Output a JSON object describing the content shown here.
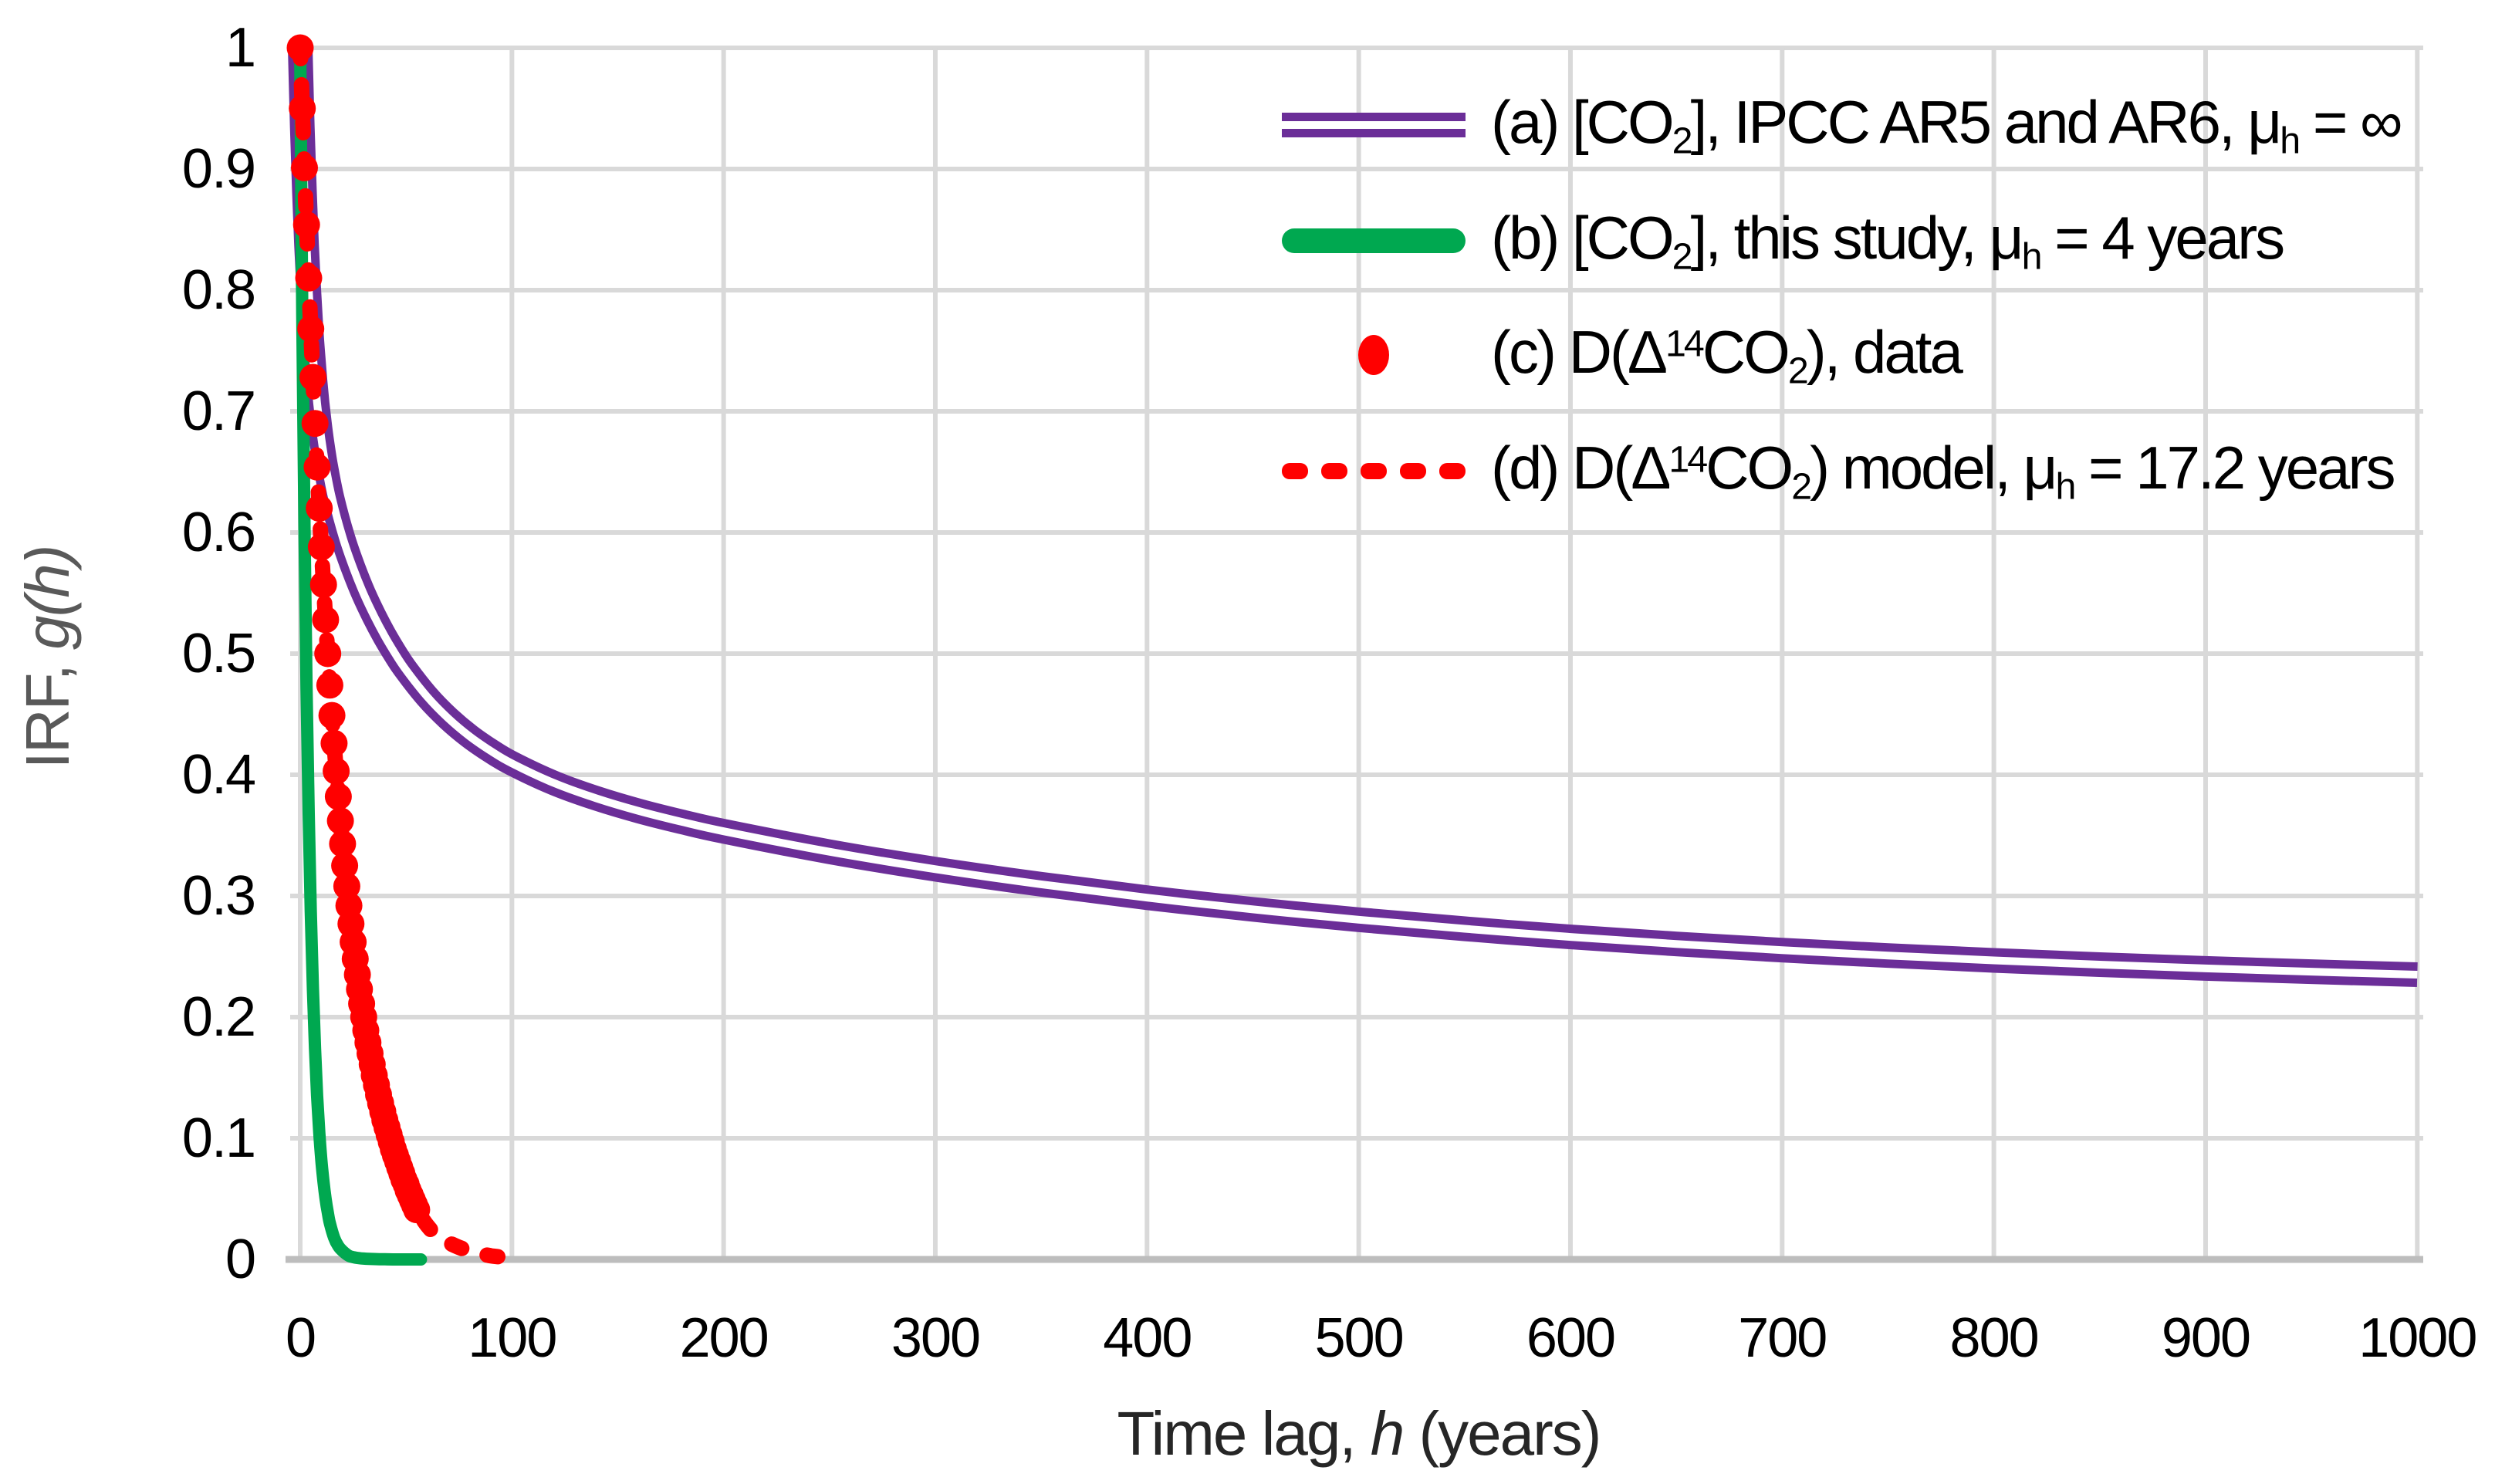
{
  "figure": {
    "background": "#FFFFFF"
  },
  "colors": {
    "ipcc_purple": "#6B2E98",
    "study_green": "#00A850",
    "data_red": "#FF0000",
    "gridline": "#D9D9D9",
    "axis_line": "#BDBDBD",
    "y_title_gray": "#595959",
    "tick_black": "#000000"
  },
  "axes": {
    "x": {
      "title_plain": "Time lag, h (years)",
      "title_segments": [
        {
          "t": "Time lag, "
        },
        {
          "t": "h",
          "style": "italic"
        },
        {
          "t": " (years)"
        }
      ],
      "min": 0,
      "max": 1000,
      "tick_step": 100,
      "tick_values": [
        0,
        100,
        200,
        300,
        400,
        500,
        600,
        700,
        800,
        900,
        1000
      ],
      "tick_labels": [
        "0",
        "100",
        "200",
        "300",
        "400",
        "500",
        "600",
        "700",
        "800",
        "900",
        "1000"
      ]
    },
    "y": {
      "title_plain": "IRF, g(h)",
      "title_segments": [
        {
          "t": "IRF, "
        },
        {
          "t": "g",
          "style": "italic"
        },
        {
          "t": "(",
          "style": "italic"
        },
        {
          "t": "h",
          "style": "italic"
        },
        {
          "t": ")",
          "style": "italic"
        }
      ],
      "min": 0,
      "max": 1,
      "tick_step": 0.1,
      "tick_values": [
        1,
        0.9,
        0.8,
        0.7,
        0.6,
        0.5,
        0.4,
        0.3,
        0.2,
        0.1,
        0
      ],
      "tick_labels": [
        "1",
        "0.9",
        "0.8",
        "0.7",
        "0.6",
        "0.5",
        "0.4",
        "0.3",
        "0.2",
        "0.1",
        "0"
      ]
    }
  },
  "legend": {
    "items": [
      {
        "id": "a",
        "symbol": "double-line",
        "color": "#6B2E98",
        "label_plain": "(a) [CO₂], IPCC AR5 and AR6, μₕ = ∞",
        "segments": [
          {
            "t": "(a) [CO"
          },
          {
            "t": "2",
            "style": "sub"
          },
          {
            "t": "], IPCC AR5 and AR6, μ"
          },
          {
            "t": "h",
            "style": "sub"
          },
          {
            "t": " = ∞"
          }
        ]
      },
      {
        "id": "b",
        "symbol": "thick-line",
        "color": "#00A850",
        "label_plain": "(b) [CO₂], this study, μₕ = 4 years",
        "segments": [
          {
            "t": "(b) [CO"
          },
          {
            "t": "2",
            "style": "sub"
          },
          {
            "t": "], this study, μ"
          },
          {
            "t": "h",
            "style": "sub"
          },
          {
            "t": " = 4 years"
          }
        ]
      },
      {
        "id": "c",
        "symbol": "dot",
        "color": "#FF0000",
        "label_plain": "(c) D(Δ¹⁴CO₂), data",
        "segments": [
          {
            "t": "(c) D(Δ"
          },
          {
            "t": "14",
            "style": "sup"
          },
          {
            "t": "CO"
          },
          {
            "t": "2",
            "style": "sub"
          },
          {
            "t": "), data"
          }
        ]
      },
      {
        "id": "d",
        "symbol": "dashed-line",
        "color": "#FF0000",
        "label_plain": "(d) D(Δ¹⁴CO₂) model, μₕ = 17.2 years",
        "segments": [
          {
            "t": "(d) D(Δ"
          },
          {
            "t": "14",
            "style": "sup"
          },
          {
            "t": "CO"
          },
          {
            "t": "2",
            "style": "sub"
          },
          {
            "t": ") model, μ"
          },
          {
            "t": "h",
            "style": "sub"
          },
          {
            "t": " = 17.2 years"
          }
        ]
      }
    ]
  },
  "chart_data": {
    "type": "line",
    "title": "",
    "xlabel": "Time lag, h (years)",
    "ylabel": "IRF, g(h)",
    "xlim": [
      0,
      1000
    ],
    "ylim": [
      0,
      1
    ],
    "grid": true,
    "legend_position": "top-right",
    "series": [
      {
        "name": "(a) [CO2], IPCC AR5 and AR6, mu_h = infinity",
        "type": "line",
        "style": "double-solid",
        "color": "#6B2E98",
        "points": [
          [
            0,
            1.0
          ],
          [
            1,
            0.9345
          ],
          [
            2,
            0.8811
          ],
          [
            3,
            0.8373
          ],
          [
            4,
            0.8012
          ],
          [
            5,
            0.7712
          ],
          [
            6,
            0.7461
          ],
          [
            7,
            0.7249
          ],
          [
            8,
            0.7067
          ],
          [
            9,
            0.6911
          ],
          [
            10,
            0.6775
          ],
          [
            12,
            0.655
          ],
          [
            15,
            0.6287
          ],
          [
            20,
            0.5963
          ],
          [
            25,
            0.5709
          ],
          [
            30,
            0.5492
          ],
          [
            35,
            0.5307
          ],
          [
            40,
            0.5142
          ],
          [
            45,
            0.4996
          ],
          [
            50,
            0.4865
          ],
          [
            60,
            0.4644
          ],
          [
            70,
            0.4465
          ],
          [
            80,
            0.4318
          ],
          [
            90,
            0.4197
          ],
          [
            100,
            0.4094
          ],
          [
            120,
            0.3931
          ],
          [
            140,
            0.3805
          ],
          [
            160,
            0.3701
          ],
          [
            180,
            0.3613
          ],
          [
            200,
            0.3534
          ],
          [
            250,
            0.3365
          ],
          [
            300,
            0.3221
          ],
          [
            350,
            0.3096
          ],
          [
            400,
            0.2986
          ],
          [
            450,
            0.2889
          ],
          [
            500,
            0.2804
          ],
          [
            550,
            0.2729
          ],
          [
            600,
            0.2662
          ],
          [
            650,
            0.2604
          ],
          [
            700,
            0.2553
          ],
          [
            750,
            0.2508
          ],
          [
            800,
            0.2468
          ],
          [
            850,
            0.2433
          ],
          [
            900,
            0.2402
          ],
          [
            950,
            0.2375
          ],
          [
            1000,
            0.235
          ]
        ]
      },
      {
        "name": "(b) [CO2], this study, mu_h = 4 years",
        "type": "line",
        "style": "solid-thick",
        "color": "#00A850",
        "points": [
          [
            0,
            1.0
          ],
          [
            1,
            0.779
          ],
          [
            2,
            0.607
          ],
          [
            3,
            0.472
          ],
          [
            4,
            0.368
          ],
          [
            5,
            0.287
          ],
          [
            6,
            0.223
          ],
          [
            7,
            0.174
          ],
          [
            8,
            0.135
          ],
          [
            9,
            0.105
          ],
          [
            10,
            0.082
          ],
          [
            11,
            0.064
          ],
          [
            12,
            0.05
          ],
          [
            13,
            0.039
          ],
          [
            14,
            0.03
          ],
          [
            16,
            0.018
          ],
          [
            18,
            0.011
          ],
          [
            20,
            0.007
          ],
          [
            23,
            0.003
          ],
          [
            26,
            0.0015
          ],
          [
            30,
            0.0007
          ],
          [
            35,
            0.0003
          ],
          [
            40,
            0.0001
          ],
          [
            45,
            0.0
          ],
          [
            50,
            0.0
          ],
          [
            57,
            0.0
          ]
        ]
      },
      {
        "name": "(c) D(Delta14CO2), data",
        "type": "scatter",
        "style": "dots",
        "color": "#FF0000",
        "points": [
          [
            0,
            1.0
          ],
          [
            1,
            0.95
          ],
          [
            2,
            0.901
          ],
          [
            3,
            0.854
          ],
          [
            4,
            0.81
          ],
          [
            5,
            0.768
          ],
          [
            6,
            0.728
          ],
          [
            7,
            0.69
          ],
          [
            8,
            0.654
          ],
          [
            9,
            0.62
          ],
          [
            10,
            0.588
          ],
          [
            11,
            0.557
          ],
          [
            12,
            0.528
          ],
          [
            13,
            0.5
          ],
          [
            14,
            0.474
          ],
          [
            15,
            0.449
          ],
          [
            16,
            0.426
          ],
          [
            17,
            0.403
          ],
          [
            18,
            0.382
          ],
          [
            19,
            0.362
          ],
          [
            20,
            0.343
          ],
          [
            21,
            0.325
          ],
          [
            22,
            0.308
          ],
          [
            23,
            0.292
          ],
          [
            24,
            0.277
          ],
          [
            25,
            0.262
          ],
          [
            26,
            0.248
          ],
          [
            27,
            0.235
          ],
          [
            28,
            0.223
          ],
          [
            29,
            0.211
          ],
          [
            30,
            0.2
          ],
          [
            31,
            0.189
          ],
          [
            32,
            0.179
          ],
          [
            33,
            0.17
          ],
          [
            34,
            0.161
          ],
          [
            35,
            0.152
          ],
          [
            36,
            0.144
          ],
          [
            37,
            0.136
          ],
          [
            38,
            0.129
          ],
          [
            39,
            0.122
          ],
          [
            40,
            0.115
          ],
          [
            41,
            0.109
          ],
          [
            42,
            0.103
          ],
          [
            43,
            0.097
          ],
          [
            44,
            0.091
          ],
          [
            45,
            0.086
          ],
          [
            46,
            0.081
          ],
          [
            47,
            0.076
          ],
          [
            48,
            0.071
          ],
          [
            49,
            0.066
          ],
          [
            50,
            0.062
          ],
          [
            51,
            0.057
          ],
          [
            52,
            0.053
          ],
          [
            53,
            0.049
          ],
          [
            54,
            0.045
          ],
          [
            55,
            0.041
          ]
        ]
      },
      {
        "name": "(d) D(Delta14CO2) model, mu_h = 17.2 years",
        "type": "line",
        "style": "dashed",
        "color": "#FF0000",
        "points": [
          [
            0,
            1.0
          ],
          [
            1,
            0.95
          ],
          [
            2,
            0.901
          ],
          [
            3,
            0.854
          ],
          [
            4,
            0.81
          ],
          [
            5,
            0.768
          ],
          [
            6,
            0.728
          ],
          [
            7,
            0.69
          ],
          [
            8,
            0.654
          ],
          [
            9,
            0.62
          ],
          [
            10,
            0.588
          ],
          [
            12,
            0.528
          ],
          [
            14,
            0.474
          ],
          [
            16,
            0.426
          ],
          [
            18,
            0.382
          ],
          [
            20,
            0.343
          ],
          [
            22,
            0.308
          ],
          [
            24,
            0.277
          ],
          [
            26,
            0.248
          ],
          [
            28,
            0.223
          ],
          [
            30,
            0.2
          ],
          [
            32,
            0.179
          ],
          [
            34,
            0.161
          ],
          [
            36,
            0.144
          ],
          [
            38,
            0.129
          ],
          [
            40,
            0.115
          ],
          [
            42,
            0.103
          ],
          [
            44,
            0.091
          ],
          [
            46,
            0.081
          ],
          [
            48,
            0.071
          ],
          [
            50,
            0.062
          ],
          [
            52,
            0.053
          ],
          [
            54,
            0.045
          ],
          [
            56,
            0.039
          ],
          [
            58,
            0.033
          ],
          [
            60,
            0.028
          ],
          [
            63,
            0.022
          ],
          [
            66,
            0.018
          ],
          [
            70,
            0.014
          ],
          [
            75,
            0.01
          ],
          [
            80,
            0.007
          ],
          [
            85,
            0.005
          ],
          [
            90,
            0.003
          ],
          [
            95,
            0.002
          ],
          [
            100,
            0.001
          ]
        ]
      }
    ]
  }
}
